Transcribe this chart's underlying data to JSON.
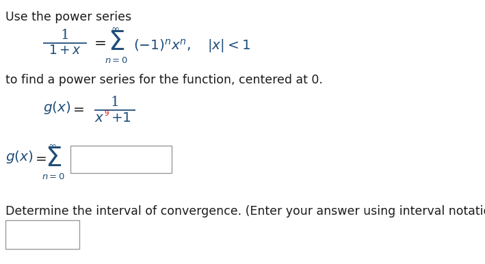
{
  "bg_color": "#ffffff",
  "text_color": "#1a1a1a",
  "blue_color": "#1f4e79",
  "red_color": "#cc0000",
  "figsize": [
    7.09,
    3.86
  ],
  "dpi": 100,
  "line1": "Use the power series",
  "line_tofind": "to find a power series for the function, centered at 0.",
  "line_determine": "Determine the interval of convergence. (Enter your answer using interval notation.)",
  "fs_body": 12.5,
  "fs_math": 13.5,
  "fs_sigma": 22,
  "fs_small": 9.5
}
